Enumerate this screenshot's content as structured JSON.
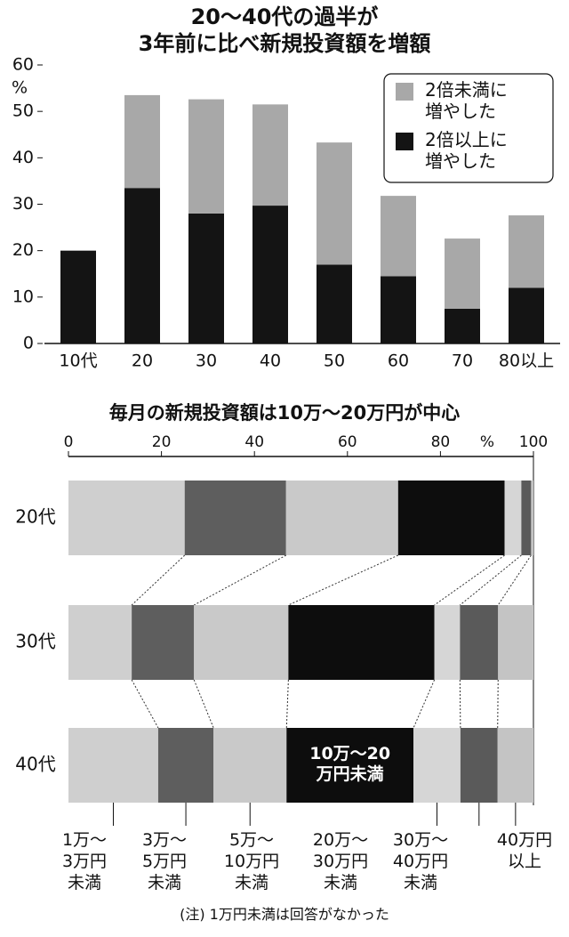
{
  "chart_data": [
    {
      "type": "bar",
      "stacked": true,
      "title": "20～40代の過半が\n3年前に比べ新規投資額を増額",
      "yunit": "%",
      "categories": [
        "10代",
        "20",
        "30",
        "40",
        "50",
        "60",
        "70",
        "80以上"
      ],
      "series": [
        {
          "name": "2倍以上に\n増やした",
          "color": "#141414",
          "values": [
            20,
            33.5,
            28,
            29.7,
            17,
            14.5,
            7.5,
            12
          ]
        },
        {
          "name": "2倍未満に\n増やした",
          "color": "#a8a8a8",
          "values": [
            0,
            20,
            24.6,
            21.8,
            26.3,
            17.3,
            15.1,
            15.6
          ]
        }
      ],
      "ylim": [
        0,
        60
      ],
      "yticks": [
        0,
        10,
        20,
        30,
        40,
        50,
        60
      ]
    },
    {
      "type": "hbar",
      "stacked": true,
      "title": "毎月の新規投資額は10万～20万円が中心",
      "xunit": "%",
      "categories": [
        "20代",
        "30代",
        "40代"
      ],
      "series": [
        {
          "name": "1万～\n3万円\n未満",
          "color": "#cfcfcf",
          "values": [
            25,
            13.6,
            19.3
          ]
        },
        {
          "name": "3万～\n5万円\n未満",
          "color": "#5e5e5e",
          "values": [
            21.8,
            13.4,
            11.9
          ]
        },
        {
          "name": "5万～\n10万円\n未満",
          "color": "#c9c9c9",
          "values": [
            24.1,
            20.3,
            15.7
          ]
        },
        {
          "name": "10万～20万円未満",
          "color": "#0d0d0d",
          "values": [
            22.9,
            31.4,
            27.3
          ]
        },
        {
          "name": "20万～\n30万円\n未満",
          "color": "#d6d6d6",
          "values": [
            3.6,
            5.5,
            10.1
          ]
        },
        {
          "name": "30万～\n40万円\n未満",
          "color": "#5a5a5a",
          "values": [
            2.1,
            8.2,
            8.0
          ]
        },
        {
          "name": "40万円\n以上",
          "color": "#c4c4c4",
          "values": [
            0.5,
            7.6,
            7.7
          ]
        }
      ],
      "annotation": "10万～20\n万円未満",
      "note": "(注) 1万円未満は回答がなかった",
      "xlim": [
        0,
        100
      ],
      "xticks": [
        0,
        20,
        40,
        60,
        80,
        100
      ]
    }
  ]
}
